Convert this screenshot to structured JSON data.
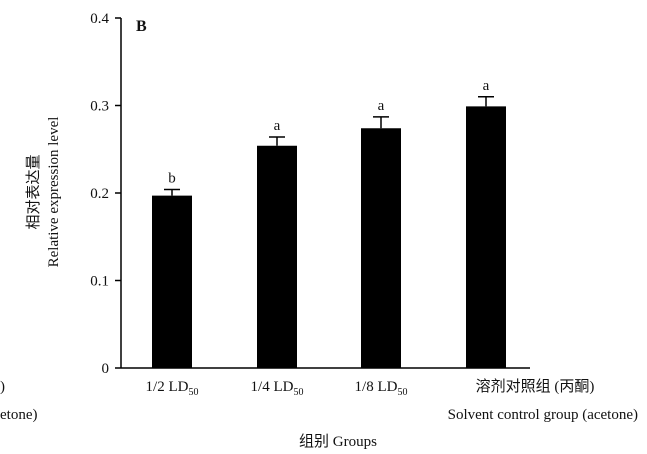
{
  "chart_data": {
    "type": "bar",
    "panel_label": "B",
    "ylabel_cn": "相对表达量",
    "ylabel_en": "Relative expression level",
    "xlabel": "组别 Groups",
    "ylim": [
      0,
      0.4
    ],
    "yticks": [
      {
        "value": 0,
        "label": "0"
      },
      {
        "value": 0.1,
        "label": "0.1"
      },
      {
        "value": 0.2,
        "label": "0.2"
      },
      {
        "value": 0.3,
        "label": "0.3"
      },
      {
        "value": 0.4,
        "label": "0.4"
      }
    ],
    "categories": [
      {
        "main": "1/2 LD",
        "sub": "50",
        "extra": "",
        "line2": ""
      },
      {
        "main": "1/4 LD",
        "sub": "50",
        "extra": "",
        "line2": ""
      },
      {
        "main": "1/8 LD",
        "sub": "50",
        "extra": "",
        "line2": ""
      },
      {
        "main": "溶剂对照组 (丙酮)",
        "sub": "",
        "extra": "",
        "line2": "Solvent control group (acetone)"
      }
    ],
    "values": [
      0.197,
      0.254,
      0.274,
      0.299
    ],
    "errors": [
      0.007,
      0.01,
      0.013,
      0.011
    ],
    "significance": [
      "b",
      "a",
      "a",
      "a"
    ],
    "left_fragments": [
      ")",
      "etone)"
    ],
    "colors": {
      "bar": "#000000",
      "axis": "#000000"
    },
    "grid": false
  }
}
